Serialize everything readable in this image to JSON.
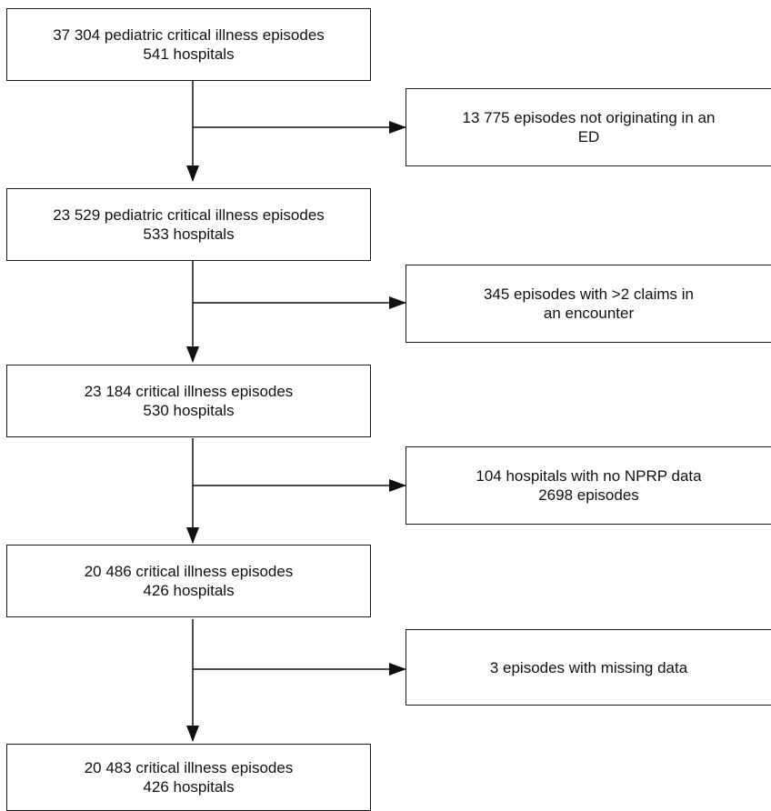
{
  "main_boxes": [
    {
      "line1": "37 304 pediatric critical illness episodes",
      "line2": "541 hospitals"
    },
    {
      "line1": "23 529 pediatric critical illness episodes",
      "line2": "533 hospitals"
    },
    {
      "line1": "23 184 critical illness episodes",
      "line2": "530 hospitals"
    },
    {
      "line1": "20 486 critical illness episodes",
      "line2": "426 hospitals"
    },
    {
      "line1": "20 483 critical illness episodes",
      "line2": "426 hospitals"
    }
  ],
  "exclusion_boxes": [
    {
      "line1": "13 775 episodes not originating in an",
      "line2": "ED"
    },
    {
      "line1": "345 episodes with >2 claims in",
      "line2": "an encounter"
    },
    {
      "line1": "104 hospitals with no NPRP data",
      "line2": "2698 episodes"
    },
    {
      "line1": "3 episodes with missing data",
      "line2": ""
    }
  ]
}
